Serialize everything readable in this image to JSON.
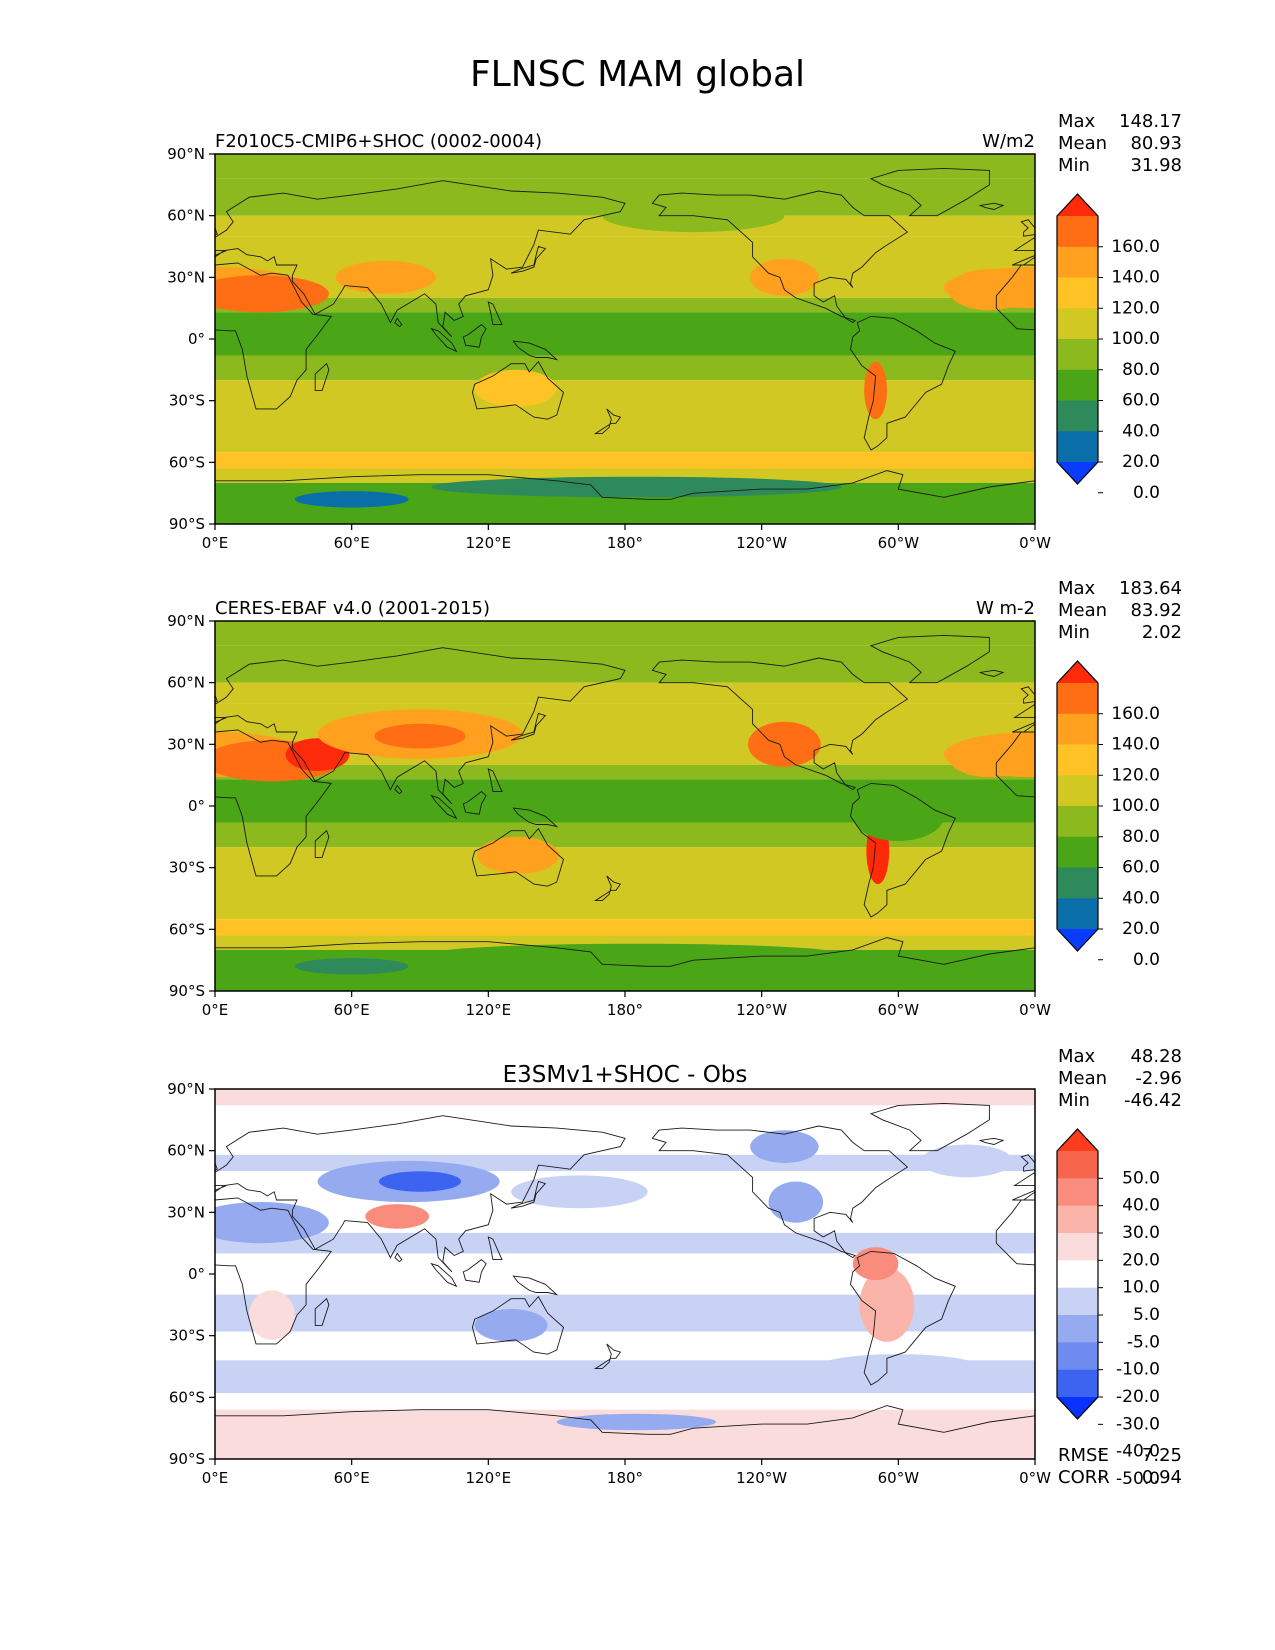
{
  "figure_title": "FLNSC MAM global",
  "colors": {
    "abs_levels": [
      "#0a3cff",
      "#0a6ea8",
      "#2e8a5a",
      "#4aa616",
      "#8cb91e",
      "#d2c823",
      "#ffc326",
      "#ffa01e",
      "#ff6e14",
      "#ff2a0a"
    ],
    "diff_levels": [
      "#0a32ff",
      "#3c64f0",
      "#6e8cf0",
      "#96aaf0",
      "#c8d2f5",
      "#ffffff",
      "#fadcdc",
      "#fab4aa",
      "#fa8c7d",
      "#f5644b",
      "#ff3c1e"
    ],
    "coastline": "#1a1a1a"
  },
  "axes": {
    "y_ticks": [
      "90°N",
      "60°N",
      "30°N",
      "0°",
      "30°S",
      "60°S",
      "90°S"
    ],
    "x_ticks": [
      "0°E",
      "60°E",
      "120°E",
      "180°",
      "120°W",
      "60°W",
      "0°W"
    ]
  },
  "chart_data": [
    {
      "type": "heatmap",
      "panel": "test",
      "title_left": "F2010C5-CMIP6+SHOC (0002-0004)",
      "title_center": "",
      "units": "W/m2",
      "stats": [
        {
          "label": "Max",
          "value": "148.17"
        },
        {
          "label": "Mean",
          "value": "80.93"
        },
        {
          "label": "Min",
          "value": "31.98"
        }
      ],
      "colorbar_levels": [
        0,
        20,
        40,
        60,
        80,
        100,
        120,
        140,
        160
      ],
      "colorbar_labels": [
        "160.0",
        "140.0",
        "120.0",
        "100.0",
        "80.0",
        "60.0",
        "40.0",
        "20.0",
        "0.0"
      ],
      "extend": "both",
      "xlim": [
        0,
        360
      ],
      "ylim": [
        -90,
        90
      ]
    },
    {
      "type": "heatmap",
      "panel": "reference",
      "title_left": "CERES-EBAF v4.0 (2001-2015)",
      "title_center": "",
      "units": "W m-2",
      "stats": [
        {
          "label": "Max",
          "value": "183.64"
        },
        {
          "label": "Mean",
          "value": "83.92"
        },
        {
          "label": "Min",
          "value": "2.02"
        }
      ],
      "colorbar_levels": [
        0,
        20,
        40,
        60,
        80,
        100,
        120,
        140,
        160
      ],
      "colorbar_labels": [
        "160.0",
        "140.0",
        "120.0",
        "100.0",
        "80.0",
        "60.0",
        "40.0",
        "20.0",
        "0.0"
      ],
      "extend": "both",
      "xlim": [
        0,
        360
      ],
      "ylim": [
        -90,
        90
      ]
    },
    {
      "type": "heatmap",
      "panel": "difference",
      "title_left": "",
      "title_center": "E3SMv1+SHOC - Obs",
      "units": "",
      "stats": [
        {
          "label": "Max",
          "value": "48.28"
        },
        {
          "label": "Mean",
          "value": "-2.96"
        },
        {
          "label": "Min",
          "value": "-46.42"
        }
      ],
      "colorbar_levels": [
        -50,
        -40,
        -30,
        -20,
        -10,
        -5,
        5,
        10,
        20,
        30,
        40,
        50
      ],
      "colorbar_labels": [
        "50.0",
        "40.0",
        "30.0",
        "20.0",
        "10.0",
        "5.0",
        "-5.0",
        "-10.0",
        "-20.0",
        "-30.0",
        "-40.0",
        "-50.0"
      ],
      "extend": "both",
      "metrics": [
        {
          "label": "RMSE",
          "value": "7.25"
        },
        {
          "label": "CORR",
          "value": "0.94"
        }
      ],
      "xlim": [
        0,
        360
      ],
      "ylim": [
        -90,
        90
      ]
    }
  ]
}
